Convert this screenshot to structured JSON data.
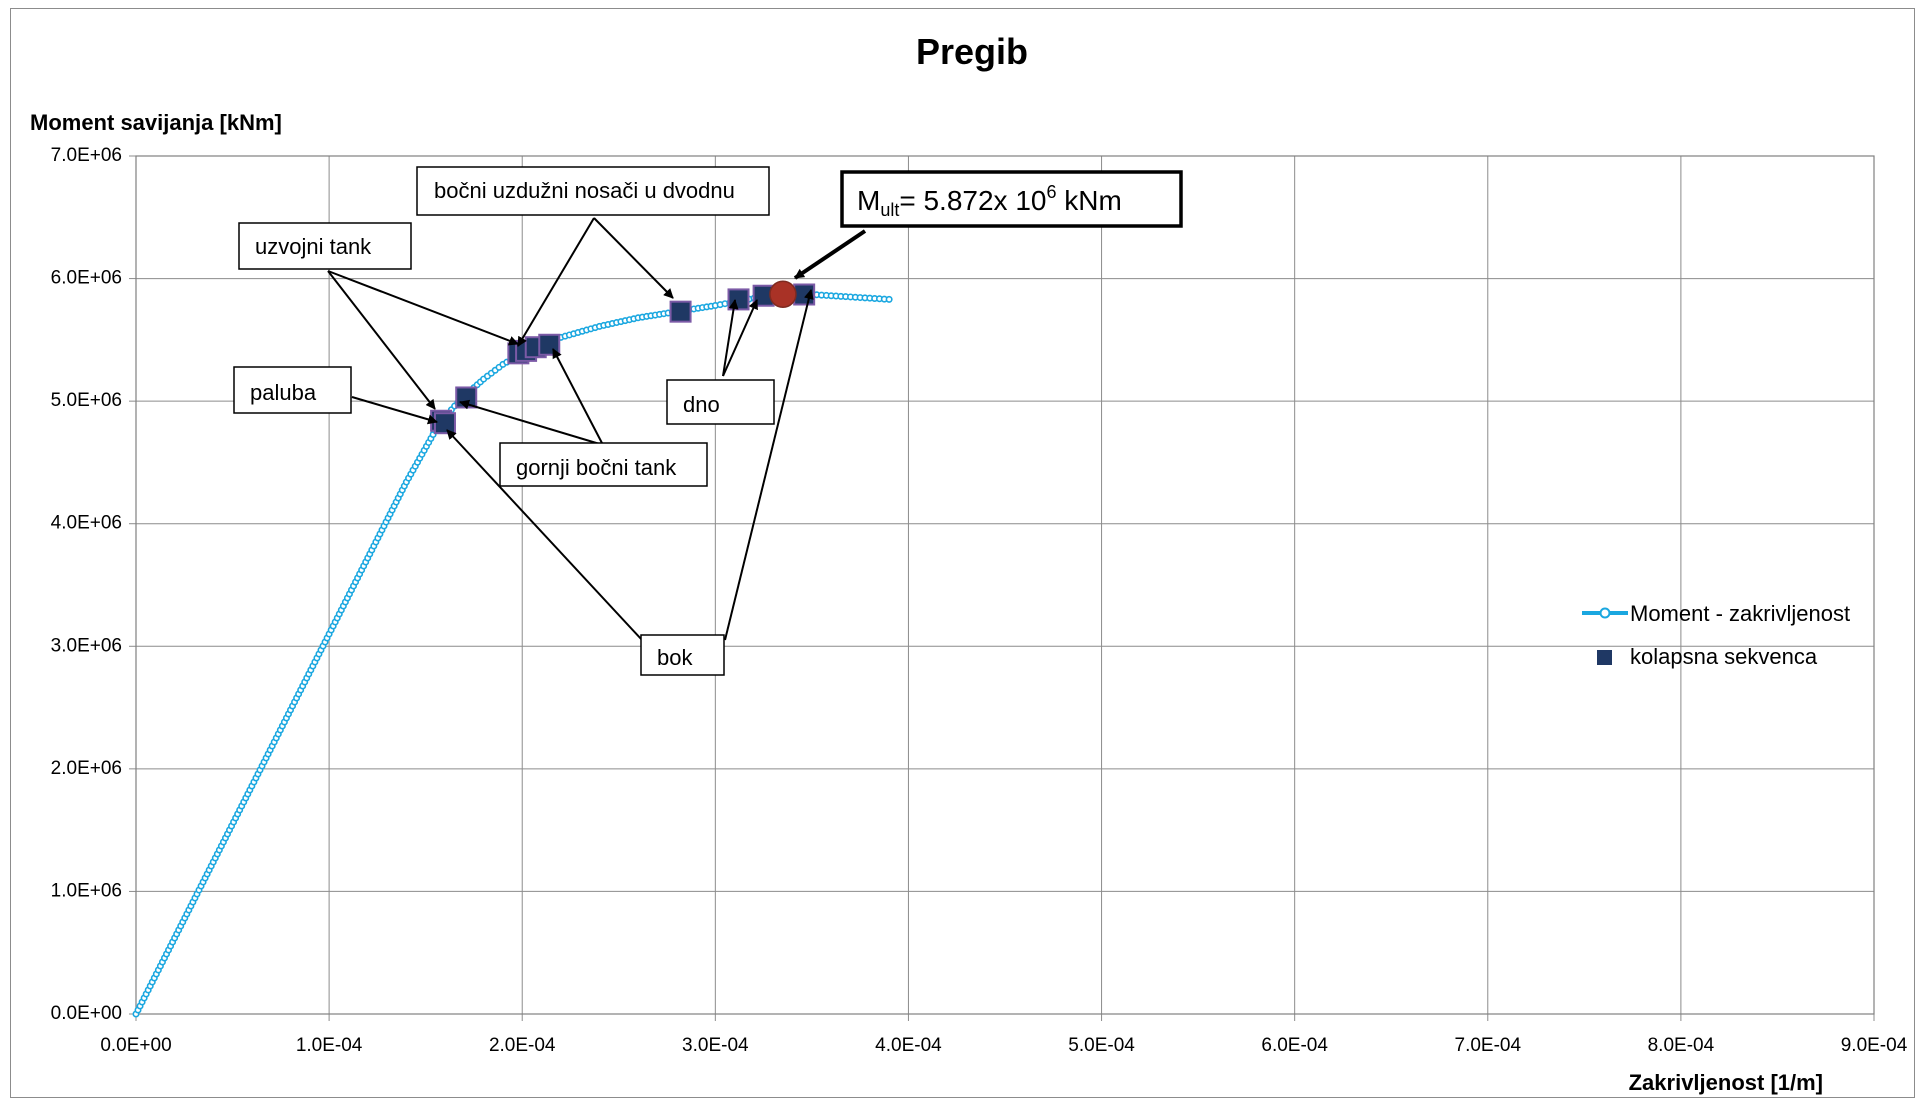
{
  "chart_data": {
    "type": "line",
    "title": "Pregib",
    "xlabel": "Zakrivljenost [1/m]",
    "ylabel": "Moment savijanja [kNm]",
    "xlim": [
      0,
      0.0009
    ],
    "ylim": [
      0,
      7000000
    ],
    "x_ticks": [
      "0.0E+00",
      "1.0E-04",
      "2.0E-04",
      "3.0E-04",
      "4.0E-04",
      "5.0E-04",
      "6.0E-04",
      "7.0E-04",
      "8.0E-04",
      "9.0E-04"
    ],
    "y_ticks": [
      "0.0E+00",
      "1.0E+06",
      "2.0E+06",
      "3.0E+06",
      "4.0E+06",
      "5.0E+06",
      "6.0E+06",
      "7.0E+06"
    ],
    "grid": true,
    "legend_position": "right",
    "series": [
      {
        "name": "Moment - zakrivljenost",
        "color": "#1aa7e0",
        "marker": "open-circle",
        "x": [
          0,
          2e-05,
          4e-05,
          6e-05,
          8e-05,
          0.0001,
          0.00012,
          0.00014,
          0.000155,
          0.00016,
          0.000165,
          0.00017,
          0.00018,
          0.00019,
          0.0002,
          0.00021,
          0.00022,
          0.00024,
          0.00026,
          0.00028,
          0.0003,
          0.00031,
          0.00032,
          0.00033,
          0.00034,
          0.00035,
          0.00036,
          0.00037,
          0.00038,
          0.00039
        ],
        "y": [
          0,
          620000,
          1240000,
          1860000,
          2480000,
          3100000,
          3720000,
          4340000,
          4760000,
          4870000,
          4960000,
          5040000,
          5180000,
          5300000,
          5390000,
          5460000,
          5520000,
          5610000,
          5680000,
          5730000,
          5780000,
          5810000,
          5840000,
          5860000,
          5870000,
          5870000,
          5860000,
          5850000,
          5840000,
          5830000
        ]
      },
      {
        "name": "kolapsna sekvenca",
        "color": "#1f3864",
        "marker": "square",
        "x": [
          0.000158,
          0.00016,
          0.000171,
          0.000198,
          0.000202,
          0.000207,
          0.000214,
          0.000282,
          0.000312,
          0.000325,
          0.000346
        ],
        "y": [
          4840000,
          4820000,
          5030000,
          5390000,
          5410000,
          5440000,
          5460000,
          5730000,
          5830000,
          5860000,
          5870000
        ]
      }
    ],
    "ultimate_point": {
      "x": 0.000335,
      "y": 5872000,
      "color": "#a93226"
    },
    "annotations": {
      "mult": {
        "main": "M",
        "sub": "ult",
        "mid": "= 5.872x 10",
        "sup": "6",
        "end": " kNm"
      },
      "labels": [
        {
          "text": "bočni uzdužni nosači u dvodnu"
        },
        {
          "text": "uzvojni tank"
        },
        {
          "text": "paluba"
        },
        {
          "text": "gornji bočni tank"
        },
        {
          "text": "dno"
        },
        {
          "text": "bok"
        }
      ]
    }
  }
}
